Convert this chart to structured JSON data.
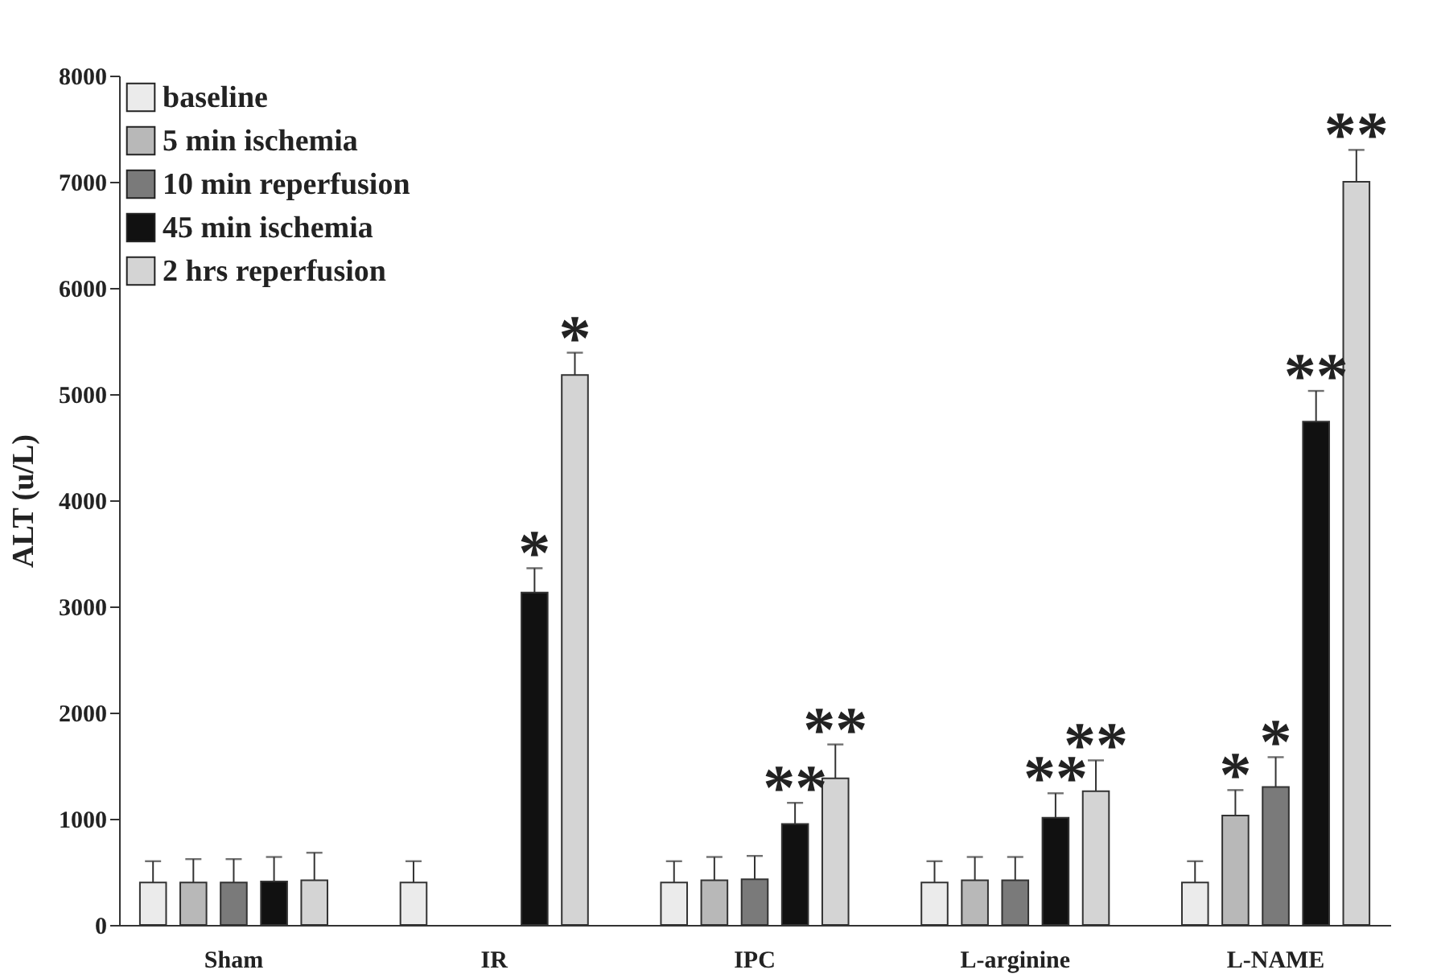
{
  "chart_data": {
    "type": "bar",
    "ylabel": "ALT (u/L)",
    "categories": [
      "Sham",
      "IR",
      "IPC",
      "L-arginine",
      "L-NAME"
    ],
    "series": [
      {
        "name": "baseline",
        "color": "#ebebeb",
        "values": [
          400,
          400,
          400,
          400,
          400
        ],
        "errors": [
          200,
          200,
          200,
          200,
          200
        ]
      },
      {
        "name": "5 min ischemia",
        "color": "#b8b8b8",
        "values": [
          400,
          null,
          420,
          420,
          1030
        ],
        "errors": [
          220,
          null,
          220,
          220,
          240
        ],
        "value_labels": [
          null,
          null,
          null,
          null,
          "*"
        ]
      },
      {
        "name": "10 min reperfusion",
        "color": "#7a7a7a",
        "values": [
          400,
          null,
          430,
          420,
          1300
        ],
        "errors": [
          220,
          null,
          220,
          220,
          280
        ],
        "value_labels": [
          null,
          null,
          null,
          null,
          "*"
        ]
      },
      {
        "name": "45 min ischemia",
        "color": "#111111",
        "values": [
          410,
          3130,
          950,
          1010,
          4740
        ],
        "errors": [
          230,
          230,
          200,
          230,
          290
        ],
        "value_labels": [
          null,
          "*",
          "**",
          "**",
          "**"
        ]
      },
      {
        "name": "2 hrs reperfusion",
        "color": "#d4d4d4",
        "values": [
          420,
          5180,
          1380,
          1260,
          7000
        ],
        "errors": [
          260,
          210,
          320,
          290,
          300
        ],
        "value_labels": [
          null,
          "*",
          "**",
          "**",
          "**"
        ]
      }
    ],
    "ylim": [
      0,
      8000
    ],
    "yticks": [
      0,
      1000,
      2000,
      3000,
      4000,
      5000,
      6000,
      7000,
      8000
    ],
    "legend": "top left"
  }
}
